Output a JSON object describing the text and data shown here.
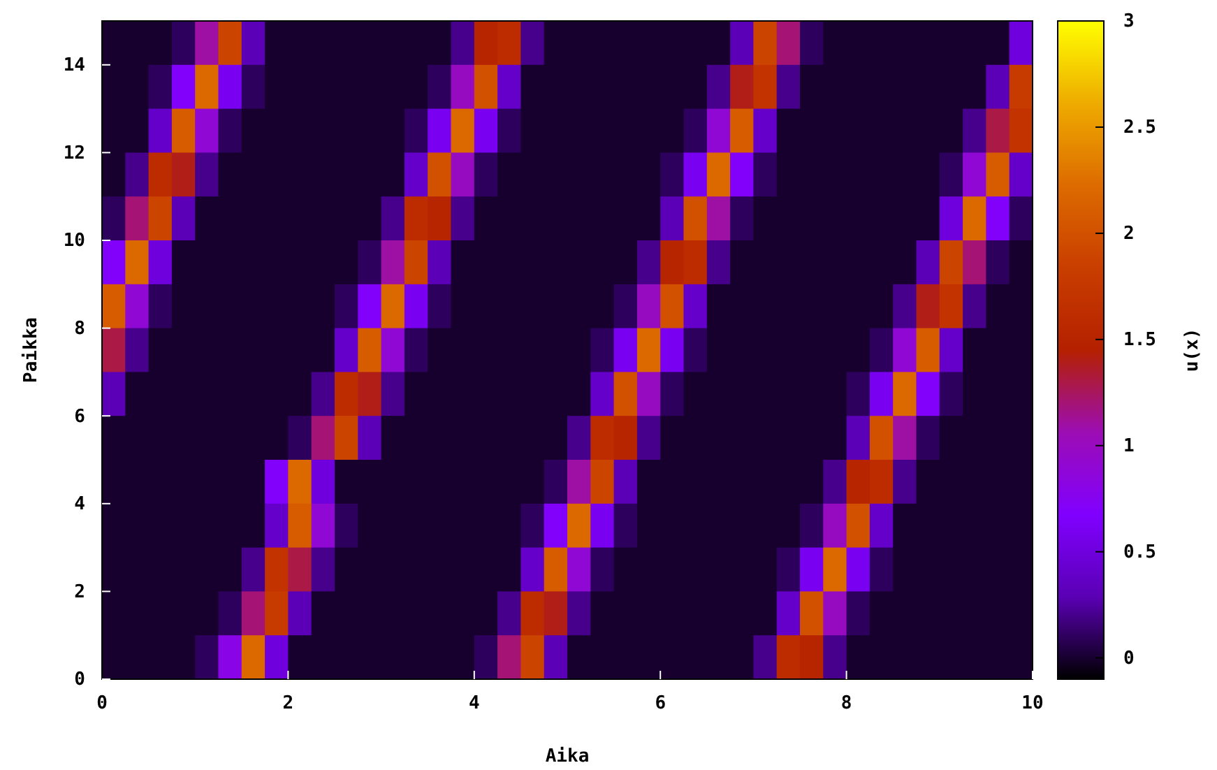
{
  "chart_data": {
    "type": "heatmap",
    "xlabel": "Aika",
    "ylabel": "Paikka",
    "clabel": "u(x)",
    "x": [
      0.125,
      0.375,
      0.625,
      0.875,
      1.125,
      1.375,
      1.625,
      1.875,
      2.125,
      2.375,
      2.625,
      2.875,
      3.125,
      3.375,
      3.625,
      3.875,
      4.125,
      4.375,
      4.625,
      4.875,
      5.125,
      5.375,
      5.625,
      5.875,
      6.125,
      6.375,
      6.625,
      6.875,
      7.125,
      7.375,
      7.625,
      7.875,
      8.125,
      8.375,
      8.625,
      8.875,
      9.125,
      9.375,
      9.625,
      9.875
    ],
    "y": [
      14.5,
      13.5,
      12.5,
      11.5,
      10.5,
      9.5,
      8.5,
      7.5,
      6.5,
      5.5,
      4.5,
      3.5,
      2.5,
      1.5,
      0.5
    ],
    "xlim": [
      0,
      10
    ],
    "xticks": [
      0,
      2,
      4,
      6,
      8,
      10
    ],
    "ylim": [
      0,
      15
    ],
    "yticks": [
      0,
      2,
      4,
      6,
      8,
      10,
      12,
      14
    ],
    "clim": [
      -0.1,
      3
    ],
    "cticks": [
      0,
      0.5,
      1,
      1.5,
      2,
      2.5,
      3
    ],
    "colors": [
      "#000000",
      "#5a00b4",
      "#8000ff",
      "#9c0db4",
      "#b42000",
      "#c93e00",
      "#dd6b00",
      "#eeab00",
      "#ffff00"
    ],
    "cells": [
      [
        0,
        0,
        0,
        0.1,
        1.1,
        1.9,
        0.3,
        0,
        0,
        0,
        0,
        0,
        0,
        0,
        0,
        0.2,
        1.5,
        1.6,
        0.2,
        0,
        0,
        0,
        0,
        0,
        0,
        0,
        0,
        0.3,
        1.9,
        1.2,
        0.1,
        0,
        0,
        0,
        0,
        0,
        0,
        0,
        0,
        0.5
      ],
      [
        0,
        0,
        0.1,
        0.7,
        2.2,
        0.6,
        0.1,
        0,
        0,
        0,
        0,
        0,
        0,
        0,
        0.1,
        1.0,
        2.0,
        0.4,
        0,
        0,
        0,
        0,
        0,
        0,
        0,
        0,
        0.2,
        1.4,
        1.7,
        0.2,
        0,
        0,
        0,
        0,
        0,
        0,
        0,
        0,
        0.3,
        1.8
      ],
      [
        0,
        0,
        0.4,
        2.1,
        0.9,
        0.1,
        0,
        0,
        0,
        0,
        0,
        0,
        0,
        0.1,
        0.6,
        2.2,
        0.6,
        0.1,
        0,
        0,
        0,
        0,
        0,
        0,
        0,
        0.1,
        0.9,
        2.1,
        0.4,
        0,
        0,
        0,
        0,
        0,
        0,
        0,
        0,
        0.2,
        1.3,
        1.7
      ],
      [
        0,
        0.2,
        1.6,
        1.4,
        0.2,
        0,
        0,
        0,
        0,
        0,
        0,
        0,
        0,
        0.4,
        2.0,
        1.0,
        0.1,
        0,
        0,
        0,
        0,
        0,
        0,
        0,
        0.1,
        0.6,
        2.2,
        0.7,
        0.1,
        0,
        0,
        0,
        0,
        0,
        0,
        0,
        0.1,
        0.9,
        2.1,
        0.4
      ],
      [
        0.1,
        1.2,
        1.9,
        0.3,
        0,
        0,
        0,
        0,
        0,
        0,
        0,
        0,
        0.2,
        1.6,
        1.5,
        0.2,
        0,
        0,
        0,
        0,
        0,
        0,
        0,
        0,
        0.3,
        2.0,
        1.1,
        0.1,
        0,
        0,
        0,
        0,
        0,
        0,
        0,
        0,
        0.5,
        2.2,
        0.7,
        0.1
      ],
      [
        0.7,
        2.2,
        0.5,
        0,
        0,
        0,
        0,
        0,
        0,
        0,
        0,
        0.1,
        1.1,
        1.9,
        0.3,
        0,
        0,
        0,
        0,
        0,
        0,
        0,
        0,
        0.2,
        1.5,
        1.6,
        0.2,
        0,
        0,
        0,
        0,
        0,
        0,
        0,
        0,
        0.3,
        1.9,
        1.2,
        0.1,
        0
      ],
      [
        2.1,
        0.9,
        0.1,
        0,
        0,
        0,
        0,
        0,
        0,
        0,
        0.1,
        0.7,
        2.2,
        0.6,
        0.1,
        0,
        0,
        0,
        0,
        0,
        0,
        0,
        0.1,
        1.0,
        2.0,
        0.4,
        0,
        0,
        0,
        0,
        0,
        0,
        0,
        0,
        0.2,
        1.4,
        1.7,
        0.2,
        0,
        0
      ],
      [
        1.3,
        0.2,
        0,
        0,
        0,
        0,
        0,
        0,
        0,
        0,
        0.4,
        2.1,
        0.9,
        0.1,
        0,
        0,
        0,
        0,
        0,
        0,
        0,
        0.1,
        0.6,
        2.2,
        0.6,
        0.1,
        0,
        0,
        0,
        0,
        0,
        0,
        0,
        0.1,
        0.9,
        2.1,
        0.4,
        0,
        0,
        0
      ],
      [
        0.3,
        0,
        0,
        0,
        0,
        0,
        0,
        0,
        0,
        0.2,
        1.6,
        1.4,
        0.2,
        0,
        0,
        0,
        0,
        0,
        0,
        0,
        0,
        0.4,
        2.0,
        1.0,
        0.1,
        0,
        0,
        0,
        0,
        0,
        0,
        0,
        0.1,
        0.6,
        2.2,
        0.7,
        0.1,
        0,
        0,
        0
      ],
      [
        0,
        0,
        0,
        0,
        0,
        0,
        0,
        0,
        0.1,
        1.2,
        1.9,
        0.3,
        0,
        0,
        0,
        0,
        0,
        0,
        0,
        0,
        0.2,
        1.6,
        1.5,
        0.2,
        0,
        0,
        0,
        0,
        0,
        0,
        0,
        0,
        0.3,
        2.0,
        1.1,
        0.1,
        0,
        0,
        0,
        0
      ],
      [
        0,
        0,
        0,
        0,
        0,
        0,
        0,
        0.7,
        2.2,
        0.5,
        0,
        0,
        0,
        0,
        0,
        0,
        0,
        0,
        0,
        0.1,
        1.1,
        1.9,
        0.3,
        0,
        0,
        0,
        0,
        0,
        0,
        0,
        0,
        0.2,
        1.5,
        1.6,
        0.2,
        0,
        0,
        0,
        0,
        0
      ],
      [
        0,
        0,
        0,
        0,
        0,
        0,
        0,
        0.4,
        2.1,
        0.9,
        0.1,
        0,
        0,
        0,
        0,
        0,
        0,
        0,
        0.1,
        0.7,
        2.2,
        0.6,
        0.1,
        0,
        0,
        0,
        0,
        0,
        0,
        0,
        0.1,
        1.0,
        2.0,
        0.4,
        0,
        0,
        0,
        0,
        0,
        0
      ],
      [
        0,
        0,
        0,
        0,
        0,
        0,
        0.2,
        1.7,
        1.3,
        0.2,
        0,
        0,
        0,
        0,
        0,
        0,
        0,
        0,
        0.4,
        2.1,
        0.9,
        0.1,
        0,
        0,
        0,
        0,
        0,
        0,
        0,
        0.1,
        0.6,
        2.2,
        0.6,
        0.1,
        0,
        0,
        0,
        0,
        0,
        0
      ],
      [
        0,
        0,
        0,
        0,
        0,
        0.1,
        1.2,
        1.8,
        0.3,
        0,
        0,
        0,
        0,
        0,
        0,
        0,
        0,
        0.2,
        1.6,
        1.4,
        0.2,
        0,
        0,
        0,
        0,
        0,
        0,
        0,
        0,
        0.4,
        2.0,
        1.0,
        0.1,
        0,
        0,
        0,
        0,
        0,
        0,
        0
      ],
      [
        0,
        0,
        0,
        0,
        0.1,
        0.8,
        2.2,
        0.5,
        0,
        0,
        0,
        0,
        0,
        0,
        0,
        0,
        0.1,
        1.2,
        1.9,
        0.3,
        0,
        0,
        0,
        0,
        0,
        0,
        0,
        0,
        0.2,
        1.6,
        1.5,
        0.2,
        0,
        0,
        0,
        0,
        0,
        0,
        0,
        0
      ]
    ]
  }
}
